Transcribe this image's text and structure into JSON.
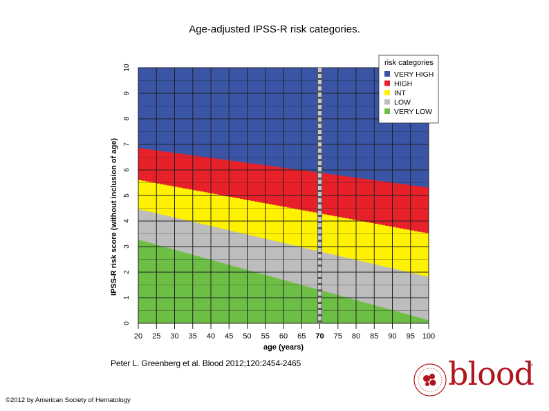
{
  "slide": {
    "title": "Age-adjusted IPSS-R risk categories.",
    "citation": "Peter L. Greenberg et al. Blood 2012;120:2454-2465",
    "copyright": "©2012 by American Society of Hematology",
    "logo_text": "blood",
    "logo_tm": "TM"
  },
  "chart_data": {
    "type": "area",
    "xlabel": "age (years)",
    "ylabel": "IPSS-R risk score (without inclusion of age)",
    "x_ticks": [
      20,
      25,
      30,
      35,
      40,
      45,
      50,
      55,
      60,
      65,
      70,
      75,
      80,
      85,
      90,
      95,
      100
    ],
    "y_ticks": [
      0,
      1,
      2,
      3,
      4,
      5,
      6,
      7,
      8,
      9,
      10
    ],
    "xlim": [
      20,
      100
    ],
    "ylim": [
      0,
      10
    ],
    "highlight_age": 70,
    "grid": true,
    "legend_position": "top-right",
    "legend_title": "risk categories",
    "categories": [
      {
        "name": "VERY HIGH",
        "color": "#3a55a6"
      },
      {
        "name": "HIGH",
        "color": "#e8202a"
      },
      {
        "name": "INT",
        "color": "#fff200"
      },
      {
        "name": "LOW",
        "color": "#bdbdbd"
      },
      {
        "name": "VERY LOW",
        "color": "#6cbe45"
      }
    ],
    "boundaries": [
      {
        "between": "VERY LOW / LOW",
        "x": [
          20,
          100
        ],
        "y": [
          3.25,
          0.1
        ]
      },
      {
        "between": "LOW / INT",
        "x": [
          20,
          100
        ],
        "y": [
          4.45,
          1.8
        ]
      },
      {
        "between": "INT / HIGH",
        "x": [
          20,
          100
        ],
        "y": [
          5.6,
          3.5
        ]
      },
      {
        "between": "HIGH / VERY HIGH",
        "x": [
          20,
          100
        ],
        "y": [
          6.85,
          5.3
        ]
      }
    ]
  }
}
